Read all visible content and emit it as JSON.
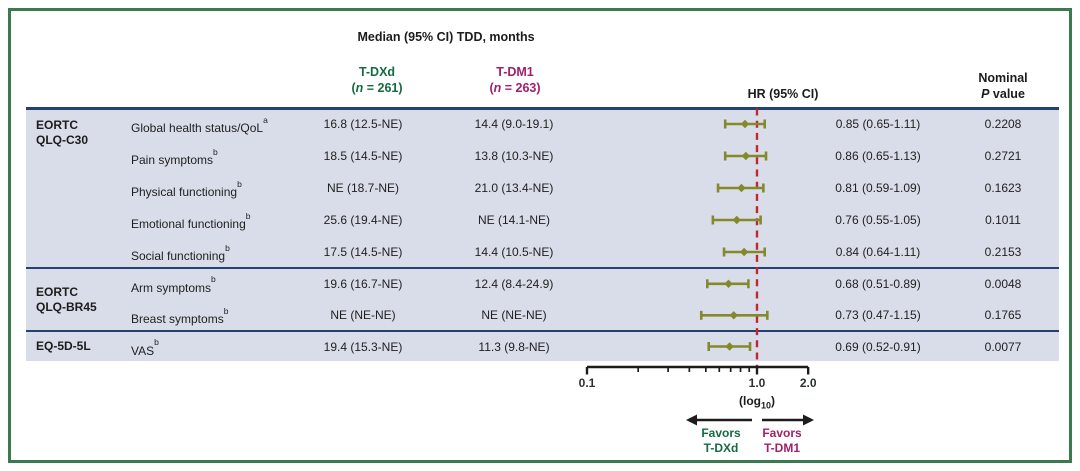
{
  "figure": {
    "title": "Median (95% CI) TDD, months",
    "header": {
      "tdxd": {
        "name": "T-DXd",
        "n_pre": "(",
        "n_italic": "n",
        "n_post": " = 261)"
      },
      "tdm1": {
        "name": "T-DM1",
        "n_pre": "(",
        "n_italic": "n",
        "n_post": " = 263)"
      },
      "hr": "HR (95% CI)",
      "pvalue": {
        "line1": "Nominal",
        "italic": "P",
        "post": " value"
      }
    },
    "axis_label": {
      "pre": "(log",
      "sub": "10",
      "post": ")"
    },
    "favors_left": {
      "line1": "Favors",
      "line2": "T-DXd"
    },
    "favors_right": {
      "line1": "Favors",
      "line2": "T-DM1"
    }
  },
  "chart_data": {
    "type": "forest",
    "title": "Median (95% CI) TDD, months",
    "series": [
      {
        "name": "T-DXd",
        "n": 261,
        "color": "#156b40"
      },
      {
        "name": "T-DM1",
        "n": 263,
        "color": "#a21f6a"
      }
    ],
    "column_headers": [
      "Median (95% CI) TDD, months",
      "HR (95% CI)",
      "Nominal P value"
    ],
    "x_axis": {
      "scale": "log10",
      "min": 0.1,
      "max": 2.0,
      "reference_line": 1.0,
      "tick_values": [
        0.1,
        1.0,
        2.0
      ],
      "tick_labels": [
        "0.1",
        "1.0",
        "2.0"
      ],
      "minor_ticks": [
        0.2,
        0.3,
        0.4,
        0.5,
        0.6,
        0.7,
        0.8,
        0.9
      ],
      "label": "(log10)"
    },
    "groups": [
      {
        "lines": [
          "EORTC",
          "QLQ-C30"
        ],
        "row_count": 5
      },
      {
        "lines": [
          "EORTC",
          "QLQ-BR45"
        ],
        "row_count": 2
      },
      {
        "lines": [
          "EQ-5D-5L"
        ],
        "row_count": 1
      }
    ],
    "rows": [
      {
        "measure": "Global health status/QoL",
        "sup": "a",
        "tdxd_median": "16.8 (12.5-NE)",
        "tdm1_median": "14.4 (9.0-19.1)",
        "hr": 0.85,
        "ci_low": 0.65,
        "ci_high": 1.11,
        "hr_label": "0.85 (0.65-1.11)",
        "p_value": "0.2208"
      },
      {
        "measure": "Pain symptoms",
        "sup": "b",
        "tdxd_median": "18.5 (14.5-NE)",
        "tdm1_median": "13.8 (10.3-NE)",
        "hr": 0.86,
        "ci_low": 0.65,
        "ci_high": 1.13,
        "hr_label": "0.86 (0.65-1.13)",
        "p_value": "0.2721"
      },
      {
        "measure": "Physical functioning",
        "sup": "b",
        "tdxd_median": "NE (18.7-NE)",
        "tdm1_median": "21.0 (13.4-NE)",
        "hr": 0.81,
        "ci_low": 0.59,
        "ci_high": 1.09,
        "hr_label": "0.81 (0.59-1.09)",
        "p_value": "0.1623"
      },
      {
        "measure": "Emotional functioning",
        "sup": "b",
        "tdxd_median": "25.6 (19.4-NE)",
        "tdm1_median": "NE (14.1-NE)",
        "hr": 0.76,
        "ci_low": 0.55,
        "ci_high": 1.05,
        "hr_label": "0.76 (0.55-1.05)",
        "p_value": "0.1011"
      },
      {
        "measure": "Social functioning",
        "sup": "b",
        "tdxd_median": "17.5 (14.5-NE)",
        "tdm1_median": "14.4 (10.5-NE)",
        "hr": 0.84,
        "ci_low": 0.64,
        "ci_high": 1.11,
        "hr_label": "0.84 (0.64-1.11)",
        "p_value": "0.2153"
      },
      {
        "measure": "Arm symptoms",
        "sup": "b",
        "tdxd_median": "19.6 (16.7-NE)",
        "tdm1_median": "12.4 (8.4-24.9)",
        "hr": 0.68,
        "ci_low": 0.51,
        "ci_high": 0.89,
        "hr_label": "0.68 (0.51-0.89)",
        "p_value": "0.0048"
      },
      {
        "measure": "Breast symptoms",
        "sup": "b",
        "tdxd_median": "NE (NE-NE)",
        "tdm1_median": "NE (NE-NE)",
        "hr": 0.73,
        "ci_low": 0.47,
        "ci_high": 1.15,
        "hr_label": "0.73 (0.47-1.15)",
        "p_value": "0.1765"
      },
      {
        "measure": "VAS",
        "sup": "b",
        "tdxd_median": "19.4 (15.3-NE)",
        "tdm1_median": "11.3 (9.8-NE)",
        "hr": 0.69,
        "ci_low": 0.52,
        "ci_high": 0.91,
        "hr_label": "0.69 (0.52-0.91)",
        "p_value": "0.0077"
      }
    ],
    "favors": {
      "left": "Favors T-DXd",
      "right": "Favors T-DM1"
    },
    "legend_position": "below-axis"
  },
  "colors": {
    "frame_green": "#3b7a4f",
    "table_background": "#d9dce9",
    "rule_navy": "#24426f",
    "marker_olive": "#848a2b",
    "reference_red": "#c1272d",
    "tdxd_green": "#156b40",
    "tdm1_magenta": "#a21f6a",
    "axis_black": "#1c1c1c"
  }
}
